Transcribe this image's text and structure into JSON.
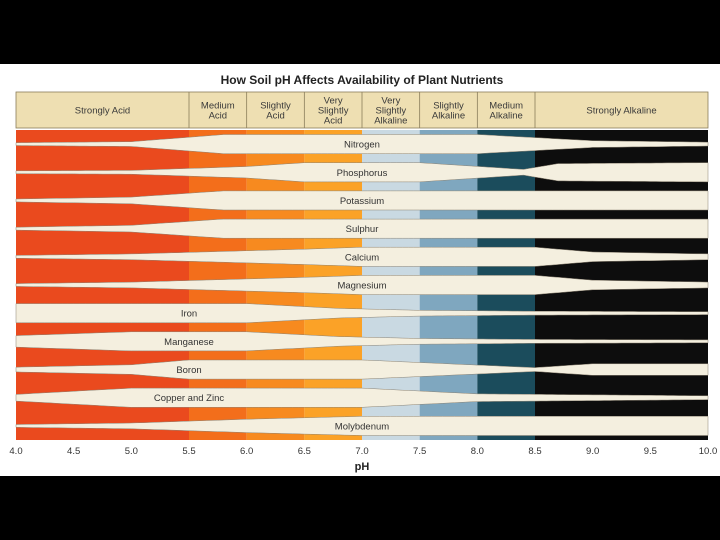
{
  "chart_data": {
    "type": "band",
    "title": "How Soil pH Affects Availability of Plant Nutrients",
    "xlabel": "pH",
    "xlim": [
      4.0,
      10.0
    ],
    "x_ticks": [
      {
        "value": 4.0,
        "label": "4.0"
      },
      {
        "value": 4.5,
        "label": "4.5"
      },
      {
        "value": 5.0,
        "label": "5.0"
      },
      {
        "value": 5.5,
        "label": "5.5"
      },
      {
        "value": 6.0,
        "label": "6.0"
      },
      {
        "value": 6.5,
        "label": "6.5"
      },
      {
        "value": 7.0,
        "label": "7.0"
      },
      {
        "value": 7.5,
        "label": "7.5"
      },
      {
        "value": 8.0,
        "label": "8.0"
      },
      {
        "value": 8.5,
        "label": "8.5"
      },
      {
        "value": 9.0,
        "label": "9.0"
      },
      {
        "value": 9.5,
        "label": "9.5"
      },
      {
        "value": 10.0,
        "label": "10.0"
      }
    ],
    "zones": [
      {
        "name": "Strongly Acid",
        "lines": [
          "Strongly Acid"
        ],
        "from": 4.0,
        "to": 5.5,
        "color": "#ea4a1e"
      },
      {
        "name": "Medium Acid",
        "lines": [
          "Medium",
          "Acid"
        ],
        "from": 5.5,
        "to": 6.0,
        "color": "#f36e1b"
      },
      {
        "name": "Slightly Acid",
        "lines": [
          "Slightly",
          "Acid"
        ],
        "from": 6.0,
        "to": 6.5,
        "color": "#f78a1f"
      },
      {
        "name": "Very Slightly Acid",
        "lines": [
          "Very",
          "Slightly",
          "Acid"
        ],
        "from": 6.5,
        "to": 7.0,
        "color": "#fba227"
      },
      {
        "name": "Very Slightly Alkaline",
        "lines": [
          "Very",
          "Slightly",
          "Alkaline"
        ],
        "from": 7.0,
        "to": 7.5,
        "color": "#c9d9e2"
      },
      {
        "name": "Slightly Alkaline",
        "lines": [
          "Slightly",
          "Alkaline"
        ],
        "from": 7.5,
        "to": 8.0,
        "color": "#7fa7bf"
      },
      {
        "name": "Medium Alkaline",
        "lines": [
          "Medium",
          "Alkaline"
        ],
        "from": 8.0,
        "to": 8.5,
        "color": "#1b4c5c"
      },
      {
        "name": "Strongly Alkaline",
        "lines": [
          "Strongly Alkaline"
        ],
        "from": 8.5,
        "to": 10.0,
        "color": "#0d0d0d"
      }
    ],
    "nutrients": [
      {
        "name": "Nitrogen",
        "label_ph": 7.0,
        "availability": [
          [
            4.0,
            0.15
          ],
          [
            5.0,
            0.25
          ],
          [
            5.8,
            1.0
          ],
          [
            8.0,
            1.0
          ],
          [
            9.0,
            0.35
          ],
          [
            10.0,
            0.2
          ]
        ]
      },
      {
        "name": "Phosphorus",
        "label_ph": 7.0,
        "availability": [
          [
            4.0,
            0.15
          ],
          [
            5.0,
            0.2
          ],
          [
            6.0,
            0.6
          ],
          [
            6.5,
            1.0
          ],
          [
            7.5,
            1.0
          ],
          [
            8.4,
            0.3
          ],
          [
            8.7,
            0.9
          ],
          [
            10.0,
            1.0
          ]
        ]
      },
      {
        "name": "Potassium",
        "label_ph": 7.0,
        "availability": [
          [
            4.0,
            0.15
          ],
          [
            5.0,
            0.35
          ],
          [
            5.8,
            1.0
          ],
          [
            10.0,
            1.0
          ]
        ]
      },
      {
        "name": "Sulphur",
        "label_ph": 7.0,
        "availability": [
          [
            4.0,
            0.15
          ],
          [
            5.0,
            0.35
          ],
          [
            5.8,
            1.0
          ],
          [
            10.0,
            1.0
          ]
        ]
      },
      {
        "name": "Calcium",
        "label_ph": 7.0,
        "availability": [
          [
            4.0,
            0.15
          ],
          [
            5.0,
            0.3
          ],
          [
            6.5,
            0.8
          ],
          [
            7.0,
            1.0
          ],
          [
            8.5,
            1.0
          ],
          [
            9.0,
            0.5
          ],
          [
            10.0,
            0.3
          ]
        ]
      },
      {
        "name": "Magnesium",
        "label_ph": 7.0,
        "availability": [
          [
            4.0,
            0.15
          ],
          [
            5.0,
            0.3
          ],
          [
            6.5,
            0.8
          ],
          [
            7.0,
            1.0
          ],
          [
            8.5,
            1.0
          ],
          [
            9.0,
            0.5
          ],
          [
            10.0,
            0.3
          ]
        ]
      },
      {
        "name": "Iron",
        "label_ph": 5.5,
        "availability": [
          [
            4.0,
            1.0
          ],
          [
            6.0,
            1.0
          ],
          [
            6.8,
            0.5
          ],
          [
            7.5,
            0.3
          ],
          [
            8.5,
            0.2
          ],
          [
            10.0,
            0.15
          ]
        ]
      },
      {
        "name": "Manganese",
        "label_ph": 5.5,
        "availability": [
          [
            4.0,
            0.6
          ],
          [
            5.0,
            1.0
          ],
          [
            6.0,
            1.0
          ],
          [
            6.8,
            0.5
          ],
          [
            7.5,
            0.3
          ],
          [
            8.5,
            0.2
          ],
          [
            10.0,
            0.15
          ]
        ]
      },
      {
        "name": "Boron",
        "label_ph": 5.5,
        "availability": [
          [
            4.0,
            0.25
          ],
          [
            5.0,
            0.5
          ],
          [
            5.5,
            1.0
          ],
          [
            7.0,
            1.0
          ],
          [
            8.5,
            0.2
          ],
          [
            9.0,
            0.6
          ],
          [
            10.0,
            0.6
          ]
        ]
      },
      {
        "name": "Copper and Zinc",
        "label_ph": 5.5,
        "availability": [
          [
            4.0,
            0.35
          ],
          [
            5.0,
            1.0
          ],
          [
            7.0,
            1.0
          ],
          [
            8.0,
            0.4
          ],
          [
            10.0,
            0.2
          ]
        ]
      },
      {
        "name": "Molybdenum",
        "label_ph": 7.0,
        "availability": [
          [
            4.0,
            0.15
          ],
          [
            5.0,
            0.3
          ],
          [
            6.0,
            0.7
          ],
          [
            7.0,
            1.0
          ],
          [
            10.0,
            1.0
          ]
        ]
      }
    ]
  }
}
